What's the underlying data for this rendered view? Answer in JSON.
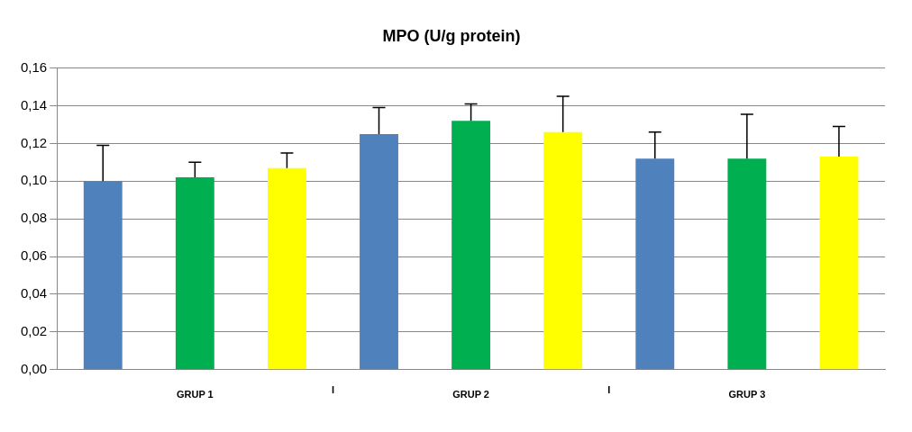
{
  "chart_data": {
    "type": "bar",
    "title": "MPO (U/g protein)",
    "categories": [
      null,
      "GRUP 1",
      null,
      null,
      "GRUP 2",
      null,
      null,
      "GRUP 3",
      null
    ],
    "values": [
      0.1,
      0.102,
      0.107,
      0.125,
      0.132,
      0.126,
      0.112,
      0.112,
      0.113
    ],
    "colors": [
      "#4f81bd",
      "#00b050",
      "#ffff00",
      "#4f81bd",
      "#00b050",
      "#ffff00",
      "#4f81bd",
      "#00b050",
      "#ffff00"
    ],
    "errors": [
      [
        0.1,
        0.119
      ],
      [
        0.102,
        0.11
      ],
      [
        0.107,
        0.115
      ],
      [
        0.125,
        0.139
      ],
      [
        0.132,
        0.141
      ],
      [
        0.126,
        0.145
      ],
      [
        0.112,
        0.126
      ],
      [
        0.112,
        0.1355
      ],
      [
        0.113,
        0.129
      ]
    ],
    "annotations": [
      "I",
      "I"
    ],
    "ylim": [
      0,
      0.16
    ],
    "yticks": [
      {
        "value": 0,
        "label": "0,00"
      },
      {
        "value": 0.02,
        "label": "0,02"
      },
      {
        "value": 0.04,
        "label": "0,04"
      },
      {
        "value": 0.06,
        "label": "0,06"
      },
      {
        "value": 0.08,
        "label": "0,08"
      },
      {
        "value": 0.1,
        "label": "0,10"
      },
      {
        "value": 0.12,
        "label": "0,12"
      },
      {
        "value": 0.14,
        "label": "0,14"
      },
      {
        "value": 0.16,
        "label": "0,16"
      }
    ],
    "grid": "y",
    "legend": false
  }
}
